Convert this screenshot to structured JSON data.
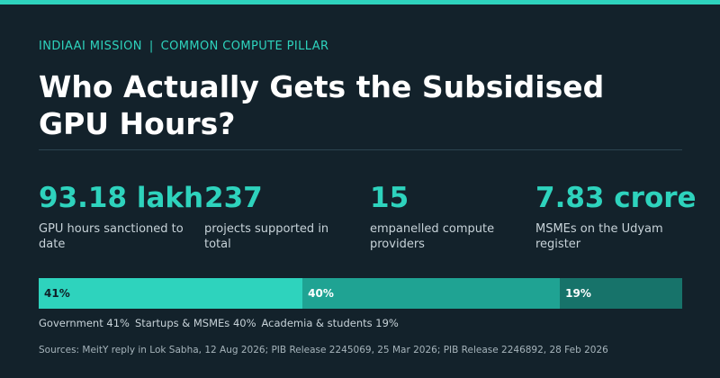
{
  "header": {
    "eyebrow_left": "INDIAAI MISSION",
    "eyebrow_sep": "|",
    "eyebrow_right": "COMMON COMPUTE PILLAR",
    "title": "Who Actually Gets the Subsidised GPU Hours?"
  },
  "stats": [
    {
      "value": "93.18 lakh",
      "label": "GPU hours sanctioned to date"
    },
    {
      "value": "237",
      "label": "projects supported in total"
    },
    {
      "value": "15",
      "label": "empanelled compute providers"
    },
    {
      "value": "7.83 crore",
      "label": "MSMEs on the Udyam register"
    }
  ],
  "share_bar": {
    "segments": [
      {
        "label": "41%",
        "share": 41,
        "color": "#2ed3bd",
        "text_color": "#0f1f26"
      },
      {
        "label": "40%",
        "share": 40,
        "color": "#1fa393",
        "text_color": "#ffffff"
      },
      {
        "label": "19%",
        "share": 19,
        "color": "#17736a",
        "text_color": "#ffffff"
      }
    ]
  },
  "legend": [
    "Government 41%",
    "Startups & MSMEs 40%",
    "Academia & students 19%"
  ],
  "sources": "Sources: MeitY reply in Lok Sabha, 12 Aug 2026; PIB Release 2245069, 25 Mar 2026; PIB Release 2246892, 28 Feb 2026",
  "colors": {
    "accent": "#2ed3bd",
    "background": "#13222b"
  }
}
